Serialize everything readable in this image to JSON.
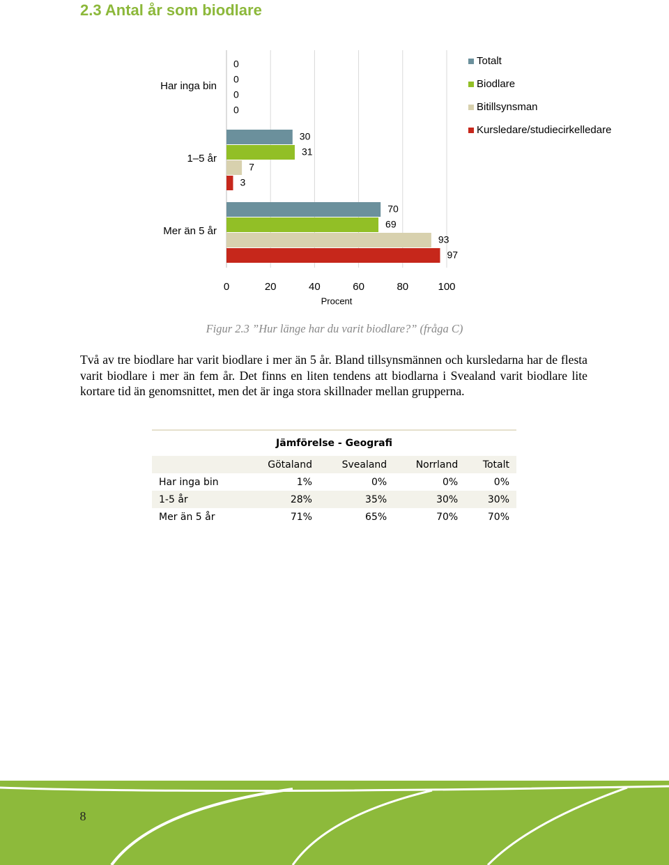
{
  "heading": "2.3 Antal år som biodlare",
  "chart_data": {
    "type": "hbar",
    "categories": [
      "Har inga bin",
      "1–5 år",
      "Mer än 5 år"
    ],
    "series": [
      {
        "name": "Totalt",
        "color": "#6b909c",
        "values": [
          0,
          30,
          70
        ]
      },
      {
        "name": "Biodlare",
        "color": "#92bf26",
        "values": [
          0,
          31,
          69
        ]
      },
      {
        "name": "Bitillsynsman",
        "color": "#d8d1ae",
        "values": [
          0,
          7,
          93
        ]
      },
      {
        "name": "Kursledare/studiecirkelledare",
        "color": "#c6271b",
        "values": [
          0,
          3,
          97
        ]
      }
    ],
    "x_label": "Procent",
    "xlim": [
      0,
      100
    ],
    "xticks": [
      0,
      20,
      40,
      60,
      80,
      100
    ],
    "grid": true
  },
  "caption": "Figur 2.3 ”Hur länge har du varit biodlare?” (fråga C)",
  "paragraph": "Två av tre biodlare har varit biodlare i mer än 5 år. Bland tillsynsmännen och kursledarna har de flesta varit biodlare i mer än fem år. Det finns en liten tendens att biodlarna i Svealand varit biodlare lite kortare tid än genomsnittet, men det är inga stora skillnader mellan grupperna.",
  "table": {
    "title": "Jämförelse - Geografi",
    "columns": [
      "Götaland",
      "Svealand",
      "Norrland",
      "Totalt"
    ],
    "rows": [
      {
        "label": "Har inga bin",
        "cells": [
          "1%",
          "0%",
          "0%",
          "0%"
        ]
      },
      {
        "label": "1-5 år",
        "cells": [
          "28%",
          "35%",
          "30%",
          "30%"
        ]
      },
      {
        "label": "Mer än 5 år",
        "cells": [
          "71%",
          "65%",
          "70%",
          "70%"
        ]
      }
    ]
  },
  "page_number": "8"
}
